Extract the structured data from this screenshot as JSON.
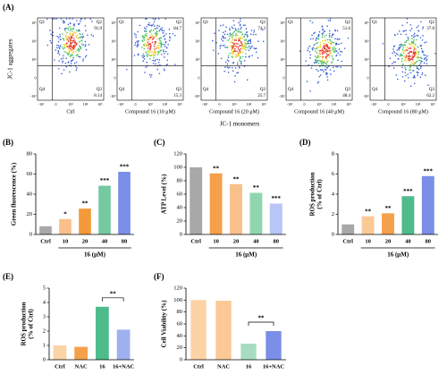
{
  "chart_data": [
    {
      "type": "flow",
      "panel": "(A)",
      "ylabel": "JC-1 aggregates",
      "xlabel": "JC-1 monomers",
      "quadrant_labels": [
        "Q1",
        "Q2",
        "Q3",
        "Q4"
      ],
      "xtick_labels": [
        "-10³",
        "0",
        "10³",
        "10⁴",
        "10⁵"
      ],
      "ytick_labels": [
        "10⁵",
        "10⁴",
        "10³",
        "0",
        "-10³"
      ],
      "plots": [
        {
          "title": "Ctrl",
          "q2": 91.9,
          "q3": 8.14
        },
        {
          "title": "Compound 16 (10 μM)",
          "q2": 84.7,
          "q3": 15.3
        },
        {
          "title": "Compound 16 (20 μM)",
          "q2": 74.3,
          "q3": 25.7
        },
        {
          "title": "Compound 16 (40 μM)",
          "q2": 51.6,
          "q3": 48.4
        },
        {
          "title": "Compound 16 (80 μM)",
          "q2": 37.8,
          "q3": 62.2
        }
      ]
    },
    {
      "type": "bar",
      "panel": "(B)",
      "ylabel": [
        "Green fluorescence (%)"
      ],
      "xlabel": "16 (μM)",
      "categories": [
        "Ctrl",
        "10",
        "20",
        "40",
        "80"
      ],
      "values": [
        8.14,
        15.3,
        25.7,
        48.4,
        62.2
      ],
      "significance": [
        null,
        "*",
        "**",
        "***",
        "***"
      ],
      "colors": [
        "#a8a8a8",
        "#f9c08a",
        "#f59a3a",
        "#74c9a0",
        "#7b8ee8"
      ],
      "ylim": [
        0,
        80
      ],
      "yticks": [
        0,
        20,
        40,
        60,
        80
      ]
    },
    {
      "type": "bar",
      "panel": "(C)",
      "ylabel": [
        "ATP Level (%)"
      ],
      "xlabel": "16 (μM)",
      "categories": [
        "Ctrl",
        "10",
        "20",
        "40",
        "80"
      ],
      "values": [
        100,
        91,
        75,
        62,
        46
      ],
      "significance": [
        null,
        "**",
        "**",
        "**",
        "***"
      ],
      "colors": [
        "#a8a8a8",
        "#f5a04a",
        "#f9c08a",
        "#8fd6b0",
        "#b8c5f5"
      ],
      "ylim": [
        0,
        120
      ],
      "yticks": [
        0,
        20,
        40,
        60,
        80,
        100,
        120
      ]
    },
    {
      "type": "bar",
      "panel": "(D)",
      "ylabel": [
        "ROS production",
        "(% of Ctrl)"
      ],
      "xlabel": "16 (μM)",
      "categories": [
        "Ctrl",
        "10",
        "20",
        "40",
        "80"
      ],
      "values": [
        1,
        1.8,
        2.1,
        3.8,
        5.8
      ],
      "significance": [
        null,
        "**",
        "**",
        "***",
        "***"
      ],
      "colors": [
        "#a8a8a8",
        "#fbc996",
        "#f5a04a",
        "#4dbb8a",
        "#7b8ee8"
      ],
      "ylim": [
        0,
        8
      ],
      "yticks": [
        0,
        2,
        4,
        6,
        8
      ]
    },
    {
      "type": "bar",
      "panel": "(E)",
      "ylabel": [
        "ROS production",
        "(% of Ctrl)"
      ],
      "categories": [
        "Ctrl",
        "NAC",
        "16",
        "16+NAC"
      ],
      "values": [
        1,
        0.9,
        3.7,
        2.1
      ],
      "colors": [
        "#fbd3a6",
        "#f5a04a",
        "#4dbb8a",
        "#9fb0f0"
      ],
      "brackets": [
        {
          "categories": [
            "16",
            "16+NAC"
          ],
          "label": "**"
        }
      ],
      "ylim": [
        0,
        5
      ],
      "yticks": [
        0,
        1,
        2,
        3,
        4,
        5
      ]
    },
    {
      "type": "bar",
      "panel": "(F)",
      "ylabel": [
        "Cell Viability (%)"
      ],
      "categories": [
        "Ctrl",
        "NAC",
        "16",
        "16+NAC"
      ],
      "values": [
        100,
        99,
        27,
        48
      ],
      "colors": [
        "#fbd3a6",
        "#fbc996",
        "#a8dcc0",
        "#7b8ee8"
      ],
      "brackets": [
        {
          "categories": [
            "16",
            "16+NAC"
          ],
          "label": "**"
        }
      ],
      "ylim": [
        0,
        120
      ],
      "yticks": [
        0,
        20,
        40,
        60,
        80,
        100,
        120
      ]
    }
  ]
}
